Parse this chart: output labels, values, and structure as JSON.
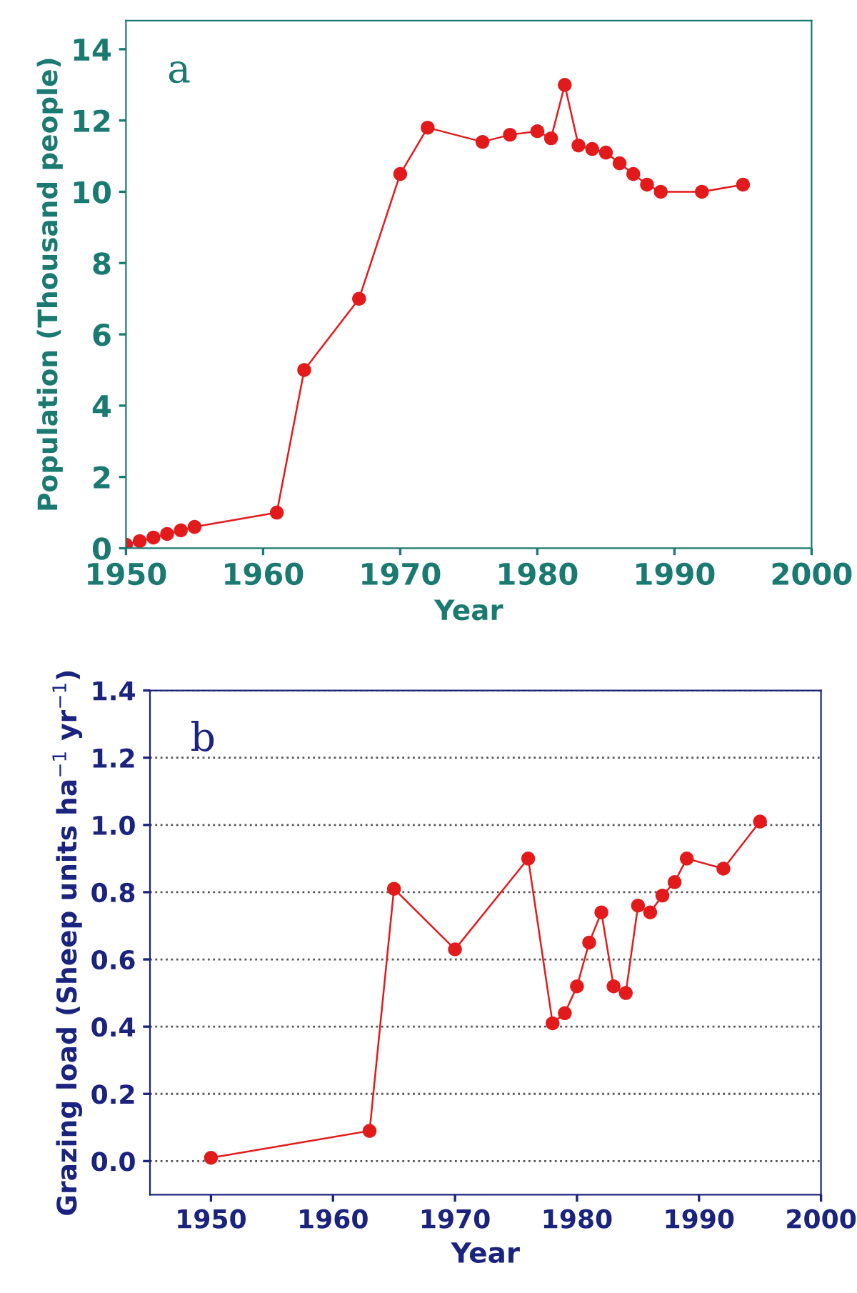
{
  "chart_data": [
    {
      "type": "line",
      "xlabel": "Year",
      "ylabel": "Population (Thousand people)",
      "annotations": [
        "a"
      ],
      "x": [
        1950,
        1951,
        1952,
        1953,
        1954,
        1955,
        1961,
        1963,
        1967,
        1970,
        1972,
        1976,
        1978,
        1980,
        1981,
        1982,
        1983,
        1984,
        1985,
        1986,
        1987,
        1988,
        1989,
        1992,
        1995
      ],
      "series": [
        {
          "color": "#e31a1c",
          "values": [
            0.1,
            0.2,
            0.3,
            0.4,
            0.5,
            0.6,
            1.0,
            5.0,
            7.0,
            10.5,
            11.8,
            11.4,
            11.6,
            11.7,
            11.5,
            13.0,
            11.3,
            11.2,
            11.1,
            10.8,
            10.5,
            10.2,
            10.0,
            10.0,
            10.2
          ]
        }
      ],
      "xlim": [
        1950,
        2000
      ],
      "xticks": [
        1950,
        1960,
        1970,
        1980,
        1990,
        2000
      ],
      "ylim": [
        0,
        14.8
      ],
      "yticks": [
        0,
        2,
        4,
        6,
        8,
        10,
        12,
        14
      ],
      "marker": "circle",
      "grid": false,
      "legend": false
    },
    {
      "type": "line",
      "xlabel": "Year",
      "ylabel": "Grazing load (Sheep units ha$^{−1}$ yr$^{−1}$)",
      "annotations": [
        "b"
      ],
      "x": [
        1950,
        1963,
        1965,
        1970,
        1976,
        1978,
        1979,
        1980,
        1981,
        1982,
        1983,
        1984,
        1985,
        1986,
        1987,
        1988,
        1989,
        1992,
        1995
      ],
      "series": [
        {
          "color": "#e31a1c",
          "values": [
            0.01,
            0.09,
            0.81,
            0.63,
            0.9,
            0.41,
            0.44,
            0.52,
            0.65,
            0.74,
            0.52,
            0.5,
            0.76,
            0.74,
            0.79,
            0.83,
            0.9,
            0.87,
            1.01
          ]
        }
      ],
      "xlim": [
        1945,
        2000
      ],
      "xticks": [
        1950,
        1960,
        1970,
        1980,
        1990,
        2000
      ],
      "ylim": [
        -0.1,
        1.4
      ],
      "yticks": [
        {
          "value": 0,
          "label": "0.0"
        },
        0.2,
        0.4,
        0.6,
        0.8,
        {
          "value": 1,
          "label": "1.0"
        },
        1.2,
        1.4
      ],
      "marker": "circle",
      "grid": "y",
      "legend": false
    }
  ]
}
